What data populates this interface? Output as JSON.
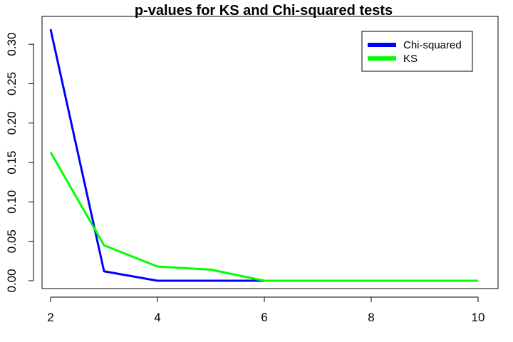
{
  "chart_data": {
    "type": "line",
    "title": "p-values for KS and Chi-squared tests",
    "xlabel": "",
    "ylabel": "",
    "x": [
      2,
      3,
      4,
      5,
      6,
      7,
      8,
      9,
      10
    ],
    "xlim": [
      2,
      10
    ],
    "ylim": [
      0,
      0.32
    ],
    "xticks": [
      2,
      4,
      6,
      8,
      10
    ],
    "yticks": [
      "0.00",
      "0.05",
      "0.10",
      "0.15",
      "0.20",
      "0.25",
      "0.30"
    ],
    "grid": false,
    "legend_position": "top-right",
    "series": [
      {
        "name": "Chi-squared",
        "color": "#0000ff",
        "values": [
          0.319,
          0.012,
          0.0,
          0.0,
          0.0,
          0.0,
          0.0,
          0.0,
          0.0
        ]
      },
      {
        "name": "KS",
        "color": "#00ff00",
        "values": [
          0.163,
          0.045,
          0.018,
          0.014,
          0.0,
          0.0,
          0.0,
          0.0,
          0.0
        ]
      }
    ]
  }
}
